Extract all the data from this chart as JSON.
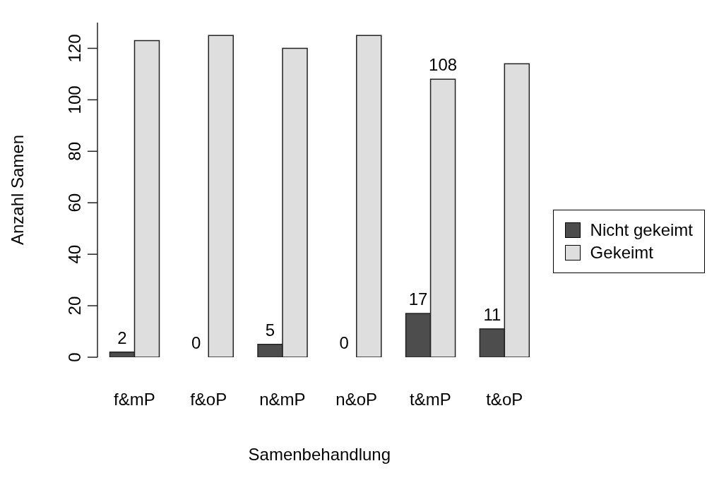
{
  "chart_data": {
    "type": "bar",
    "xlabel": "Samenbehandlung",
    "ylabel": "Anzahl Samen",
    "categories": [
      "f&mP",
      "f&oP",
      "n&mP",
      "n&oP",
      "t&mP",
      "t&oP"
    ],
    "series": [
      {
        "name": "Nicht gekeimt",
        "color": "#4d4d4d",
        "values": [
          2,
          0,
          5,
          0,
          17,
          11
        ],
        "value_labels": [
          "2",
          "0",
          "5",
          "0",
          "17",
          "11"
        ]
      },
      {
        "name": "Gekeimt",
        "color": "#dedede",
        "values": [
          123,
          125,
          120,
          125,
          108,
          114
        ],
        "value_labels": [
          null,
          null,
          null,
          null,
          "108",
          null
        ]
      }
    ],
    "ylim": [
      0,
      130
    ],
    "yticks": [
      0,
      20,
      40,
      60,
      80,
      100,
      120
    ],
    "legend": "right"
  }
}
